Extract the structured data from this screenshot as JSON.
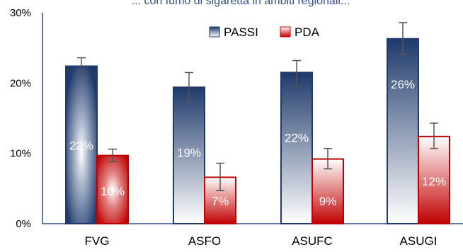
{
  "chart_data": {
    "type": "bar",
    "title": "... con fumo di sigaretta in ambiti regionali...",
    "categories": [
      "FVG",
      "ASFO",
      "ASUFC",
      "ASUGI"
    ],
    "ylim": [
      0,
      30
    ],
    "yticks": [
      "0%",
      "10%",
      "20%",
      "30%"
    ],
    "ytick_values": [
      0,
      10,
      20,
      30
    ],
    "grid": false,
    "legend_position": "top-center",
    "series": [
      {
        "name": "PASSI",
        "values": [
          22.4,
          19.4,
          21.5,
          26.3
        ],
        "labels": [
          "22%",
          "19%",
          "22%",
          "26%"
        ],
        "error_low": [
          21.2,
          17.4,
          19.6,
          24.1
        ],
        "error_high": [
          23.6,
          21.5,
          23.2,
          28.6
        ],
        "color": "#1f3a6b"
      },
      {
        "name": "PDA",
        "values": [
          9.7,
          6.6,
          9.2,
          12.4
        ],
        "labels": [
          "10%",
          "7%",
          "9%",
          "12%"
        ],
        "error_low": [
          8.8,
          4.7,
          7.8,
          10.7
        ],
        "error_high": [
          10.6,
          8.6,
          10.7,
          14.3
        ],
        "color": "#c00000"
      }
    ]
  }
}
